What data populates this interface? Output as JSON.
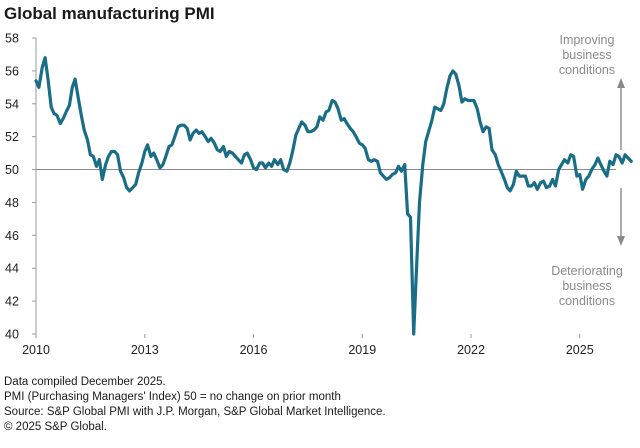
{
  "chart_data": {
    "type": "line",
    "title": "Global manufacturing PMI",
    "xlabel": "",
    "ylabel": "",
    "xlim": [
      2010.0,
      2026.0
    ],
    "ylim": [
      40,
      58
    ],
    "yticks": [
      40,
      42,
      44,
      46,
      48,
      50,
      52,
      54,
      56,
      58
    ],
    "xticks": [
      2010,
      2013,
      2016,
      2019,
      2022,
      2025
    ],
    "reference_line": 50,
    "grid": false,
    "legend": "none",
    "color": "#1a6d87",
    "annotations": {
      "top": [
        "Improving",
        "business",
        "conditions"
      ],
      "bottom": [
        "Deteriorating",
        "business",
        "conditions"
      ]
    },
    "series": [
      {
        "values": [
          [
            2010.0,
            55.4
          ],
          [
            2010.08,
            55.0
          ],
          [
            2010.17,
            56.2
          ],
          [
            2010.25,
            56.8
          ],
          [
            2010.33,
            55.5
          ],
          [
            2010.42,
            53.8
          ],
          [
            2010.5,
            53.4
          ],
          [
            2010.58,
            53.3
          ],
          [
            2010.67,
            52.8
          ],
          [
            2010.75,
            53.1
          ],
          [
            2010.83,
            53.5
          ],
          [
            2010.92,
            53.9
          ],
          [
            2011.0,
            55.0
          ],
          [
            2011.08,
            55.5
          ],
          [
            2011.17,
            54.3
          ],
          [
            2011.25,
            53.3
          ],
          [
            2011.33,
            52.4
          ],
          [
            2011.42,
            51.8
          ],
          [
            2011.5,
            50.9
          ],
          [
            2011.58,
            50.8
          ],
          [
            2011.67,
            50.2
          ],
          [
            2011.75,
            50.6
          ],
          [
            2011.83,
            49.4
          ],
          [
            2011.92,
            50.3
          ],
          [
            2012.0,
            50.8
          ],
          [
            2012.08,
            51.1
          ],
          [
            2012.17,
            51.1
          ],
          [
            2012.25,
            50.9
          ],
          [
            2012.33,
            49.9
          ],
          [
            2012.42,
            49.5
          ],
          [
            2012.5,
            48.9
          ],
          [
            2012.58,
            48.7
          ],
          [
            2012.67,
            48.9
          ],
          [
            2012.75,
            49.1
          ],
          [
            2012.83,
            49.8
          ],
          [
            2012.92,
            50.4
          ],
          [
            2013.0,
            51.1
          ],
          [
            2013.08,
            51.5
          ],
          [
            2013.17,
            50.8
          ],
          [
            2013.25,
            51.0
          ],
          [
            2013.33,
            50.6
          ],
          [
            2013.42,
            50.1
          ],
          [
            2013.5,
            50.3
          ],
          [
            2013.58,
            50.8
          ],
          [
            2013.67,
            51.4
          ],
          [
            2013.75,
            51.5
          ],
          [
            2013.83,
            52.0
          ],
          [
            2013.92,
            52.6
          ],
          [
            2014.0,
            52.7
          ],
          [
            2014.08,
            52.7
          ],
          [
            2014.17,
            52.5
          ],
          [
            2014.25,
            51.8
          ],
          [
            2014.33,
            52.2
          ],
          [
            2014.42,
            52.4
          ],
          [
            2014.5,
            52.2
          ],
          [
            2014.58,
            52.3
          ],
          [
            2014.67,
            52.0
          ],
          [
            2014.75,
            51.7
          ],
          [
            2014.83,
            51.9
          ],
          [
            2014.92,
            51.6
          ],
          [
            2015.0,
            51.2
          ],
          [
            2015.08,
            51.1
          ],
          [
            2015.17,
            51.4
          ],
          [
            2015.25,
            50.8
          ],
          [
            2015.33,
            51.1
          ],
          [
            2015.42,
            51.0
          ],
          [
            2015.5,
            50.8
          ],
          [
            2015.58,
            50.6
          ],
          [
            2015.67,
            50.4
          ],
          [
            2015.75,
            50.9
          ],
          [
            2015.83,
            51.0
          ],
          [
            2015.92,
            50.6
          ],
          [
            2016.0,
            50.1
          ],
          [
            2016.08,
            50.0
          ],
          [
            2016.17,
            50.4
          ],
          [
            2016.25,
            50.4
          ],
          [
            2016.33,
            50.1
          ],
          [
            2016.42,
            50.4
          ],
          [
            2016.5,
            50.2
          ],
          [
            2016.58,
            50.6
          ],
          [
            2016.67,
            50.3
          ],
          [
            2016.75,
            50.6
          ],
          [
            2016.83,
            50.0
          ],
          [
            2016.92,
            49.9
          ],
          [
            2017.0,
            50.4
          ],
          [
            2017.08,
            51.1
          ],
          [
            2017.17,
            52.1
          ],
          [
            2017.25,
            52.5
          ],
          [
            2017.33,
            52.9
          ],
          [
            2017.42,
            52.7
          ],
          [
            2017.5,
            52.3
          ],
          [
            2017.58,
            52.3
          ],
          [
            2017.67,
            52.4
          ],
          [
            2017.75,
            52.6
          ],
          [
            2017.83,
            53.2
          ],
          [
            2017.92,
            53.0
          ],
          [
            2018.0,
            53.5
          ],
          [
            2018.08,
            53.6
          ],
          [
            2018.17,
            54.2
          ],
          [
            2018.25,
            54.1
          ],
          [
            2018.33,
            53.7
          ],
          [
            2018.42,
            53.0
          ],
          [
            2018.5,
            53.1
          ],
          [
            2018.58,
            52.8
          ],
          [
            2018.67,
            52.5
          ],
          [
            2018.75,
            52.3
          ],
          [
            2018.83,
            52.0
          ],
          [
            2018.92,
            51.6
          ],
          [
            2019.0,
            51.5
          ],
          [
            2019.08,
            51.3
          ],
          [
            2019.17,
            50.6
          ],
          [
            2019.25,
            50.5
          ],
          [
            2019.33,
            50.6
          ],
          [
            2019.42,
            50.5
          ],
          [
            2019.5,
            49.8
          ],
          [
            2019.58,
            49.6
          ],
          [
            2019.67,
            49.4
          ],
          [
            2019.75,
            49.5
          ],
          [
            2019.83,
            49.7
          ],
          [
            2019.92,
            49.8
          ],
          [
            2020.0,
            50.2
          ],
          [
            2020.08,
            49.9
          ],
          [
            2020.17,
            50.3
          ],
          [
            2020.25,
            47.3
          ],
          [
            2020.33,
            47.1
          ],
          [
            2020.42,
            40.0
          ],
          [
            2020.5,
            44.1
          ],
          [
            2020.58,
            48.0
          ],
          [
            2020.67,
            50.3
          ],
          [
            2020.75,
            51.7
          ],
          [
            2020.83,
            52.3
          ],
          [
            2020.92,
            53.0
          ],
          [
            2021.0,
            53.8
          ],
          [
            2021.08,
            53.7
          ],
          [
            2021.17,
            53.6
          ],
          [
            2021.25,
            54.0
          ],
          [
            2021.33,
            54.9
          ],
          [
            2021.42,
            55.7
          ],
          [
            2021.5,
            56.0
          ],
          [
            2021.58,
            55.8
          ],
          [
            2021.67,
            55.1
          ],
          [
            2021.75,
            54.1
          ],
          [
            2021.83,
            54.3
          ],
          [
            2021.92,
            54.2
          ],
          [
            2022.0,
            54.2
          ],
          [
            2022.08,
            54.2
          ],
          [
            2022.17,
            53.7
          ],
          [
            2022.25,
            52.9
          ],
          [
            2022.33,
            52.3
          ],
          [
            2022.42,
            52.6
          ],
          [
            2022.5,
            52.5
          ],
          [
            2022.58,
            51.2
          ],
          [
            2022.67,
            50.9
          ],
          [
            2022.75,
            50.3
          ],
          [
            2022.83,
            49.9
          ],
          [
            2022.92,
            49.4
          ],
          [
            2023.0,
            48.9
          ],
          [
            2023.08,
            48.7
          ],
          [
            2023.17,
            49.1
          ],
          [
            2023.25,
            49.9
          ],
          [
            2023.33,
            49.6
          ],
          [
            2023.42,
            49.6
          ],
          [
            2023.5,
            49.6
          ],
          [
            2023.58,
            49.0
          ],
          [
            2023.67,
            49.0
          ],
          [
            2023.75,
            49.2
          ],
          [
            2023.83,
            48.8
          ],
          [
            2023.92,
            49.2
          ],
          [
            2024.0,
            49.3
          ],
          [
            2024.08,
            48.9
          ],
          [
            2024.17,
            49.0
          ],
          [
            2024.25,
            49.4
          ],
          [
            2024.33,
            49.0
          ],
          [
            2024.42,
            50.0
          ],
          [
            2024.5,
            50.3
          ],
          [
            2024.58,
            50.6
          ],
          [
            2024.67,
            50.4
          ],
          [
            2024.75,
            50.9
          ],
          [
            2024.83,
            50.8
          ],
          [
            2024.92,
            49.6
          ],
          [
            2025.0,
            49.7
          ],
          [
            2025.08,
            48.8
          ],
          [
            2025.17,
            49.4
          ],
          [
            2025.25,
            49.6
          ],
          [
            2025.33,
            50.0
          ],
          [
            2025.42,
            50.3
          ],
          [
            2025.5,
            50.7
          ],
          [
            2025.58,
            50.3
          ],
          [
            2025.67,
            49.9
          ],
          [
            2025.75,
            49.6
          ],
          [
            2025.83,
            50.5
          ],
          [
            2025.92,
            50.3
          ],
          [
            2026.0,
            50.9
          ],
          [
            2026.08,
            50.8
          ],
          [
            2026.17,
            50.4
          ],
          [
            2026.25,
            50.9
          ],
          [
            2026.33,
            50.7
          ],
          [
            2026.42,
            50.5
          ]
        ]
      }
    ]
  },
  "footer": {
    "line1": "Data compiled December 2025.",
    "line2": "PMI (Purchasing Managers' Index) 50 = no change on prior month",
    "line3": "Source: S&P Global  PMI with J.P. Morgan, S&P Global Market Intelligence.",
    "line4": "© 2025 S&P Global."
  }
}
